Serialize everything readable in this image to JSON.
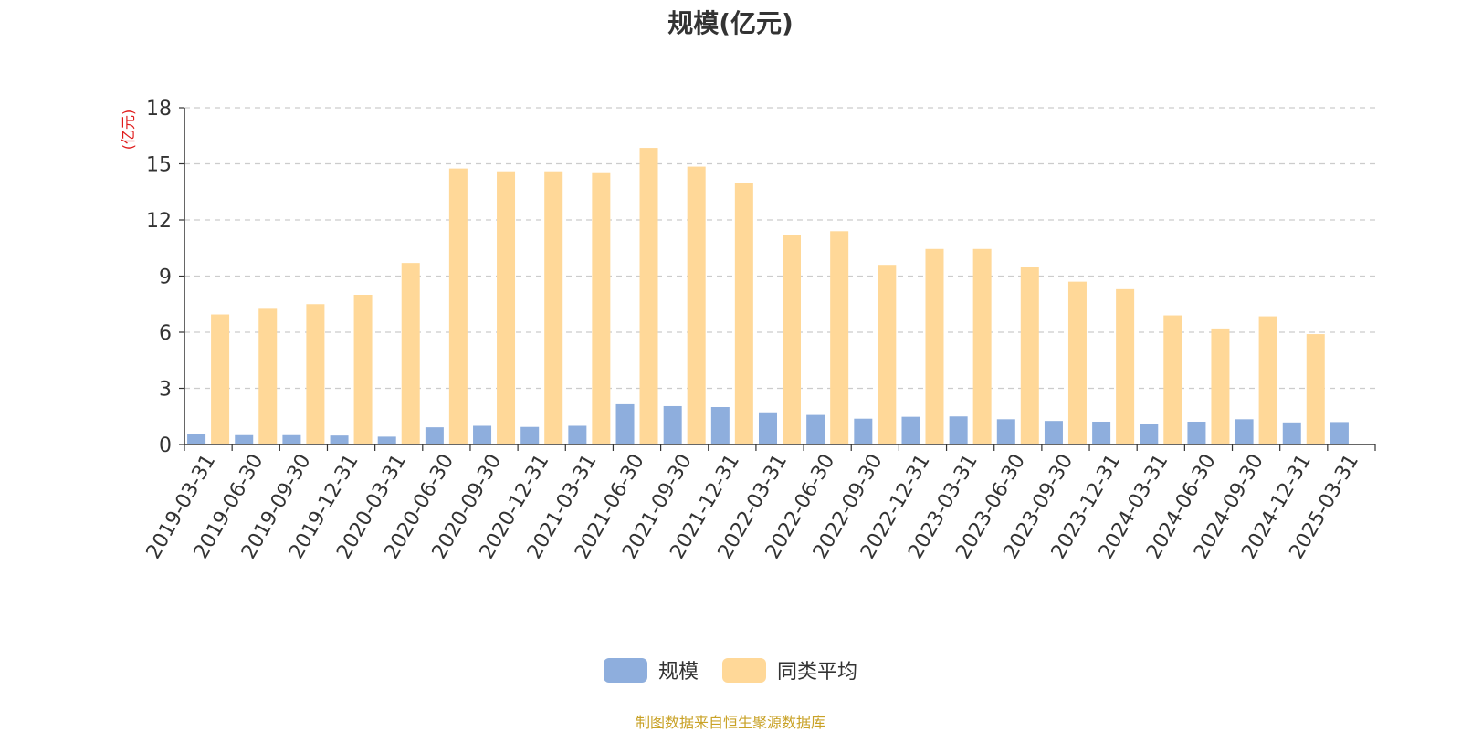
{
  "title": "规模(亿元)",
  "source_note": "制图数据来自恒生聚源数据库",
  "colors": {
    "scale": "#8eaedd",
    "average": "#ffd898",
    "grid": "#cccccc",
    "axis": "#333333",
    "unit": "#e01b1b"
  },
  "chart_data": {
    "type": "bar",
    "title": "规模(亿元)",
    "xlabel": "",
    "ylabel": "(亿元)",
    "ylim": [
      0,
      18
    ],
    "yticks": [
      0,
      3,
      6,
      9,
      12,
      15,
      18
    ],
    "grid": true,
    "legend_position": "bottom",
    "categories": [
      "2019-03-31",
      "2019-06-30",
      "2019-09-30",
      "2019-12-31",
      "2020-03-31",
      "2020-06-30",
      "2020-09-30",
      "2020-12-31",
      "2021-03-31",
      "2021-06-30",
      "2021-09-30",
      "2021-12-31",
      "2022-03-31",
      "2022-06-30",
      "2022-09-30",
      "2022-12-31",
      "2023-03-31",
      "2023-06-30",
      "2023-09-30",
      "2023-12-31",
      "2024-03-31",
      "2024-06-30",
      "2024-09-30",
      "2024-12-31",
      "2025-03-31"
    ],
    "series": [
      {
        "name": "规模",
        "values": [
          0.55,
          0.5,
          0.5,
          0.48,
          0.42,
          0.92,
          1.0,
          0.94,
          1.0,
          2.15,
          2.05,
          2.0,
          1.72,
          1.58,
          1.38,
          1.48,
          1.5,
          1.35,
          1.26,
          1.22,
          1.1,
          1.22,
          1.35,
          1.18,
          1.2
        ]
      },
      {
        "name": "同类平均",
        "values": [
          6.95,
          7.25,
          7.5,
          8.0,
          9.7,
          14.75,
          14.6,
          14.6,
          14.55,
          15.85,
          14.85,
          14.0,
          11.2,
          11.4,
          9.6,
          10.45,
          10.45,
          9.5,
          8.7,
          8.3,
          6.9,
          6.2,
          6.85,
          5.9,
          null
        ]
      }
    ]
  }
}
